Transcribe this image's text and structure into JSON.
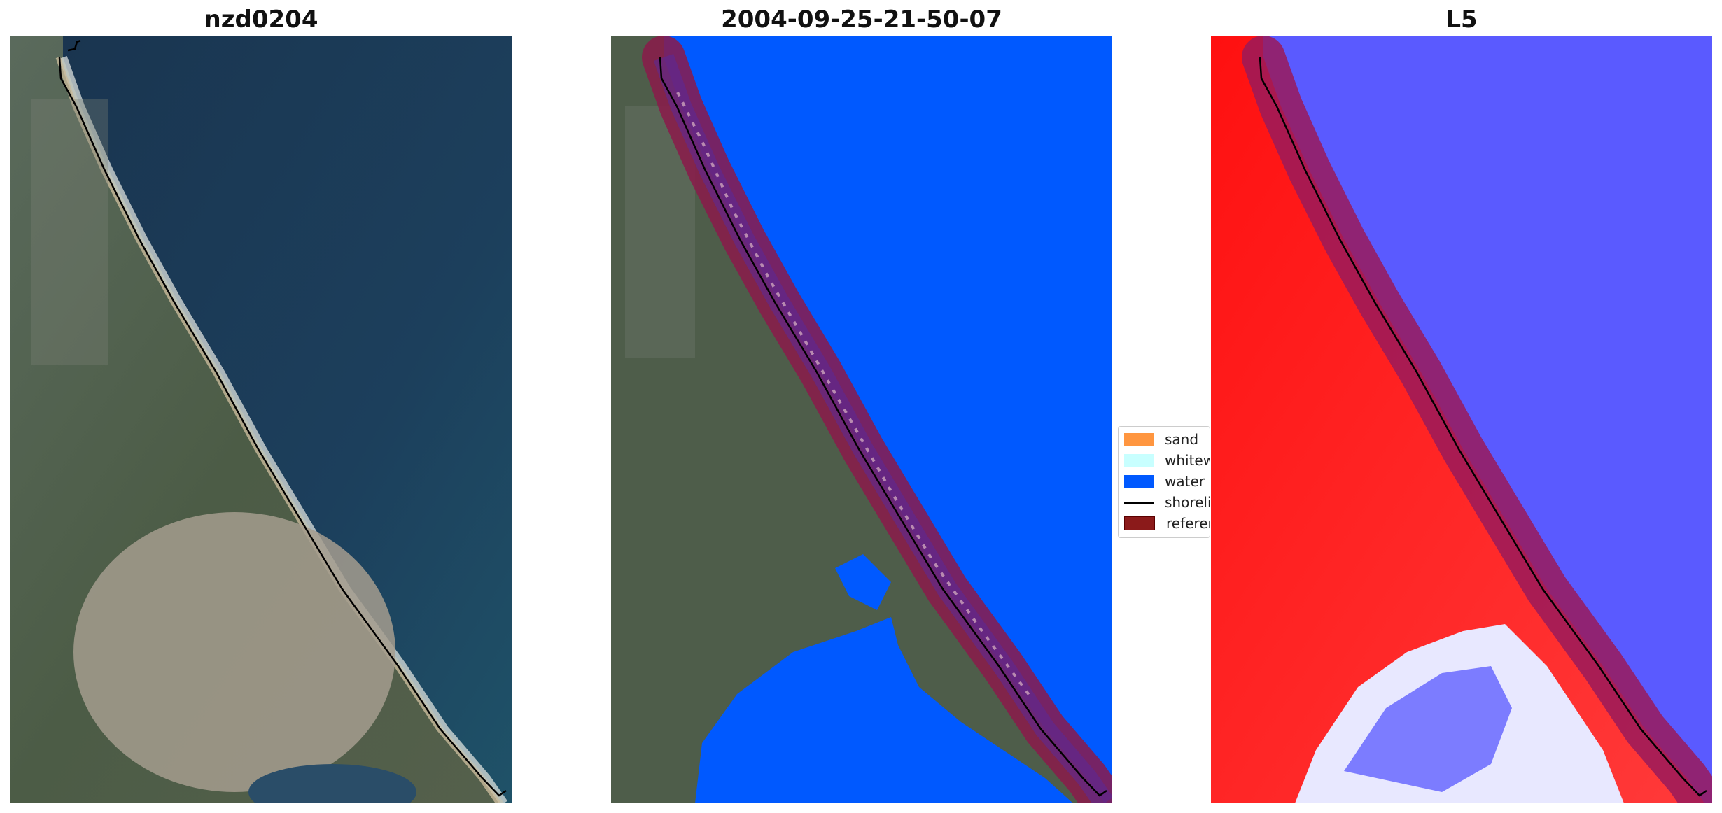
{
  "panels": {
    "left_title": "nzd0204",
    "middle_title": "2004-09-25-21-50-07",
    "right_title": "L5"
  },
  "legend": {
    "items": [
      {
        "label": "sand",
        "color": "#ff9640"
      },
      {
        "label": "whitewater",
        "color": "#c8ffff"
      },
      {
        "label": "water",
        "color": "#0059ff"
      },
      {
        "label": "shoreline",
        "color": "#000000"
      },
      {
        "label": "reference shoreline",
        "color": "#8b1a1a"
      }
    ]
  },
  "colors": {
    "ocean": "#1c3d58",
    "land": "#4a5b48",
    "water_class": "#0059ff",
    "reference_buffer": "#8b1a2a",
    "index_positive": "#ff1a1a",
    "index_negative": "#4040ff"
  }
}
